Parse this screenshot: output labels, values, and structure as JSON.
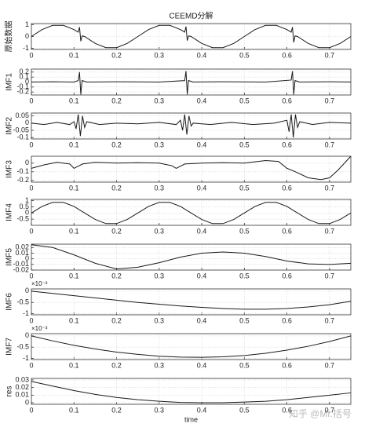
{
  "chart_data": [
    {
      "type": "line",
      "title": "CEEMD分解",
      "ylabel": "原始数据",
      "color": "#1a1a1a",
      "x": [
        0,
        0.025,
        0.05,
        0.075,
        0.1,
        0.11,
        0.113,
        0.116,
        0.119,
        0.125,
        0.15,
        0.175,
        0.2,
        0.225,
        0.25,
        0.275,
        0.3,
        0.325,
        0.35,
        0.36,
        0.363,
        0.366,
        0.369,
        0.375,
        0.4,
        0.425,
        0.45,
        0.475,
        0.5,
        0.525,
        0.55,
        0.575,
        0.6,
        0.61,
        0.613,
        0.616,
        0.619,
        0.625,
        0.65,
        0.675,
        0.7,
        0.725,
        0.75
      ],
      "values": [
        0,
        0.59,
        0.95,
        0.95,
        0.59,
        0.37,
        0.8,
        -0.4,
        0.05,
        0,
        -0.59,
        -0.95,
        -0.95,
        -0.59,
        0,
        0.59,
        0.95,
        0.95,
        0.59,
        0.37,
        0.85,
        -0.35,
        0.05,
        0,
        -0.59,
        -0.95,
        -0.95,
        -0.59,
        0,
        0.59,
        0.95,
        0.95,
        0.59,
        0.37,
        0.8,
        -0.5,
        0.05,
        0,
        -0.59,
        -0.95,
        -0.95,
        -0.59,
        0
      ],
      "xlim": [
        0,
        0.75
      ],
      "xticks": [
        0,
        0.1,
        0.2,
        0.3,
        0.4,
        0.5,
        0.6,
        0.7
      ],
      "ylim": [
        -1.1,
        1.1
      ],
      "yticks": [
        -1,
        0,
        1
      ],
      "grid": true
    },
    {
      "type": "line",
      "ylabel": "IMF1",
      "color": "#1a1a1a",
      "x": [
        0,
        0.05,
        0.1,
        0.11,
        0.113,
        0.116,
        0.119,
        0.13,
        0.2,
        0.3,
        0.36,
        0.363,
        0.366,
        0.369,
        0.38,
        0.45,
        0.55,
        0.61,
        0.613,
        0.616,
        0.619,
        0.63,
        0.7,
        0.75
      ],
      "values": [
        0,
        0.005,
        0,
        0.03,
        0.2,
        -0.25,
        0.03,
        0,
        0.005,
        0,
        0.03,
        0.22,
        -0.25,
        0.03,
        0,
        0.005,
        0,
        0.04,
        0.22,
        -0.25,
        0.03,
        0,
        0.005,
        0
      ],
      "xlim": [
        0,
        0.75
      ],
      "xticks": [
        0,
        0.1,
        0.2,
        0.3,
        0.4,
        0.5,
        0.6,
        0.7
      ],
      "ylim": [
        -0.26,
        0.26
      ],
      "yticks": [
        -0.2,
        -0.1,
        0,
        0.1,
        0.2
      ],
      "grid": true
    },
    {
      "type": "line",
      "ylabel": "IMF2",
      "color": "#1a1a1a",
      "x": [
        0,
        0.03,
        0.06,
        0.09,
        0.1,
        0.105,
        0.11,
        0.115,
        0.12,
        0.125,
        0.13,
        0.16,
        0.2,
        0.25,
        0.3,
        0.34,
        0.35,
        0.355,
        0.36,
        0.365,
        0.37,
        0.375,
        0.38,
        0.42,
        0.47,
        0.52,
        0.57,
        0.6,
        0.605,
        0.61,
        0.615,
        0.62,
        0.625,
        0.63,
        0.66,
        0.7,
        0.75
      ],
      "values": [
        0,
        -0.01,
        0.005,
        -0.01,
        0.01,
        -0.04,
        0.06,
        -0.09,
        0.05,
        -0.03,
        0.01,
        -0.01,
        0,
        -0.005,
        0.005,
        -0.01,
        0.02,
        -0.05,
        0.06,
        -0.08,
        0.05,
        -0.02,
        0,
        -0.01,
        0.005,
        -0.01,
        0,
        0.02,
        -0.06,
        0.06,
        -0.1,
        0.06,
        -0.03,
        0.01,
        -0.01,
        0.005,
        0
      ],
      "xlim": [
        0,
        0.75
      ],
      "xticks": [
        0,
        0.1,
        0.2,
        0.3,
        0.4,
        0.5,
        0.6,
        0.7
      ],
      "ylim": [
        -0.11,
        0.07
      ],
      "yticks": [
        -0.1,
        -0.05,
        0,
        0.05
      ],
      "grid": true
    },
    {
      "type": "line",
      "ylabel": "IMF3",
      "color": "#1a1a1a",
      "x": [
        0,
        0.03,
        0.06,
        0.09,
        0.1,
        0.12,
        0.15,
        0.2,
        0.25,
        0.3,
        0.33,
        0.34,
        0.36,
        0.4,
        0.45,
        0.5,
        0.55,
        0.58,
        0.6,
        0.62,
        0.65,
        0.68,
        0.7,
        0.72,
        0.75
      ],
      "values": [
        -0.06,
        -0.02,
        0.01,
        -0.01,
        -0.06,
        -0.01,
        0.01,
        0,
        0.005,
        0,
        -0.03,
        -0.06,
        -0.01,
        0,
        0.005,
        0,
        0.03,
        0.02,
        -0.06,
        -0.1,
        -0.17,
        -0.19,
        -0.17,
        -0.08,
        0.08
      ],
      "xlim": [
        0,
        0.75
      ],
      "xticks": [
        0,
        0.1,
        0.2,
        0.3,
        0.4,
        0.5,
        0.6,
        0.7
      ],
      "ylim": [
        -0.22,
        0.08
      ],
      "yticks": [
        -0.2,
        -0.1,
        0
      ],
      "grid": true
    },
    {
      "type": "line",
      "ylabel": "IMF4",
      "color": "#1a1a1a",
      "x": [
        0,
        0.025,
        0.05,
        0.075,
        0.1,
        0.125,
        0.15,
        0.175,
        0.2,
        0.225,
        0.25,
        0.275,
        0.3,
        0.325,
        0.35,
        0.375,
        0.4,
        0.425,
        0.45,
        0.475,
        0.5,
        0.525,
        0.55,
        0.575,
        0.6,
        0.625,
        0.65,
        0.675,
        0.7,
        0.725,
        0.75
      ],
      "values": [
        0,
        0.53,
        0.86,
        0.86,
        0.53,
        0,
        -0.53,
        -0.86,
        -0.86,
        -0.53,
        0,
        0.53,
        0.86,
        0.86,
        0.53,
        0,
        -0.53,
        -0.86,
        -0.86,
        -0.53,
        0,
        0.53,
        0.86,
        0.86,
        0.53,
        0,
        -0.53,
        -0.86,
        -0.86,
        -0.53,
        0
      ],
      "xlim": [
        0,
        0.75
      ],
      "xticks": [
        0,
        0.1,
        0.2,
        0.3,
        0.4,
        0.5,
        0.6,
        0.7
      ],
      "ylim": [
        -1,
        1.1
      ],
      "yticks": [
        -0.5,
        0,
        0.5,
        1
      ],
      "grid": true
    },
    {
      "type": "line",
      "ylabel": "IMF5",
      "color": "#1a1a1a",
      "x": [
        0,
        0.05,
        0.1,
        0.15,
        0.2,
        0.25,
        0.3,
        0.35,
        0.4,
        0.45,
        0.5,
        0.55,
        0.6,
        0.65,
        0.7,
        0.75
      ],
      "values": [
        0.025,
        0.02,
        0.007,
        -0.008,
        -0.018,
        -0.015,
        -0.007,
        0.003,
        0.01,
        0.012,
        0.01,
        0.004,
        -0.004,
        -0.009,
        -0.01,
        -0.008
      ],
      "xlim": [
        0,
        0.75
      ],
      "xticks": [
        0,
        0.1,
        0.2,
        0.3,
        0.4,
        0.5,
        0.6,
        0.7
      ],
      "ylim": [
        -0.02,
        0.026
      ],
      "yticks": [
        -0.02,
        -0.01,
        0,
        0.01,
        0.02
      ],
      "grid": true
    },
    {
      "type": "line",
      "ylabel": "IMF6",
      "y_exponent": "×10⁻³",
      "color": "#1a1a1a",
      "x": [
        0,
        0.05,
        0.1,
        0.15,
        0.2,
        0.25,
        0.3,
        0.35,
        0.4,
        0.45,
        0.5,
        0.55,
        0.6,
        0.65,
        0.7,
        0.75
      ],
      "values": [
        0,
        -0.1,
        -0.2,
        -0.3,
        -0.4,
        -0.5,
        -0.58,
        -0.66,
        -0.72,
        -0.77,
        -0.8,
        -0.8,
        -0.77,
        -0.7,
        -0.6,
        -0.45
      ],
      "xlim": [
        0,
        0.75
      ],
      "xticks": [
        0,
        0.1,
        0.2,
        0.3,
        0.4,
        0.5,
        0.6,
        0.7
      ],
      "ylim": [
        -1.05,
        0.1
      ],
      "yticks": [
        -1,
        -0.5,
        0
      ],
      "grid": true
    },
    {
      "type": "line",
      "ylabel": "IMF7",
      "y_exponent": "×10⁻³",
      "color": "#1a1a1a",
      "x": [
        0,
        0.05,
        0.1,
        0.15,
        0.2,
        0.25,
        0.3,
        0.35,
        0.4,
        0.45,
        0.5,
        0.55,
        0.6,
        0.65,
        0.7,
        0.75
      ],
      "values": [
        0,
        -0.22,
        -0.42,
        -0.58,
        -0.72,
        -0.82,
        -0.9,
        -0.94,
        -0.95,
        -0.93,
        -0.87,
        -0.77,
        -0.63,
        -0.46,
        -0.25,
        0
      ],
      "xlim": [
        0,
        0.75
      ],
      "xticks": [
        0,
        0.1,
        0.2,
        0.3,
        0.4,
        0.5,
        0.6,
        0.7
      ],
      "ylim": [
        -1.05,
        0.1
      ],
      "yticks": [
        -1,
        -0.5,
        0
      ],
      "grid": true
    },
    {
      "type": "line",
      "ylabel": "res",
      "xlabel": "time",
      "color": "#1a1a1a",
      "x": [
        0,
        0.05,
        0.1,
        0.15,
        0.2,
        0.25,
        0.3,
        0.35,
        0.4,
        0.45,
        0.5,
        0.55,
        0.6,
        0.65,
        0.7,
        0.75
      ],
      "values": [
        0.028,
        0.022,
        0.016,
        0.011,
        0.007,
        0.004,
        0.002,
        0.0005,
        0,
        0,
        0.001,
        0.002,
        0.004,
        0.007,
        0.01,
        0.013
      ],
      "xlim": [
        0,
        0.75
      ],
      "xticks": [
        0,
        0.1,
        0.2,
        0.3,
        0.4,
        0.5,
        0.6,
        0.7
      ],
      "ylim": [
        -0.002,
        0.032
      ],
      "yticks": [
        0,
        0.01,
        0.02,
        0.03
      ],
      "grid": true
    }
  ],
  "watermark": "知乎 @Mr.括号"
}
